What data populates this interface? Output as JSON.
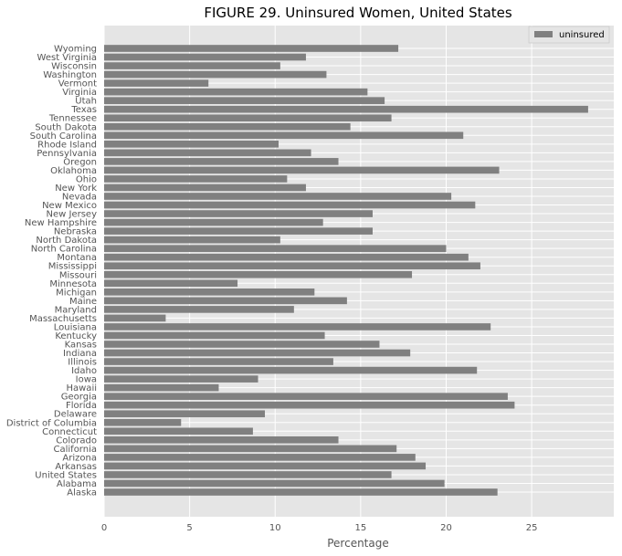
{
  "chart_data": {
    "type": "bar",
    "orientation": "horizontal",
    "title": "FIGURE 29. Uninsured Women, United States",
    "xlabel": "Percentage",
    "ylabel": "",
    "xlim": [
      0,
      29.8
    ],
    "xticks": [
      0,
      5,
      10,
      15,
      20,
      25
    ],
    "grid": true,
    "legend_position": "top-right",
    "bar_color": "#808080",
    "background_color": "#e5e5e5",
    "series": [
      {
        "name": "uninsured",
        "categories": [
          "Alaska",
          "Alabama",
          "United States",
          "Arkansas",
          "Arizona",
          "California",
          "Colorado",
          "Connecticut",
          "District of Columbia",
          "Delaware",
          "Florida",
          "Georgia",
          "Hawaii",
          "Iowa",
          "Idaho",
          "Illinois",
          "Indiana",
          "Kansas",
          "Kentucky",
          "Louisiana",
          "Massachusetts",
          "Maryland",
          "Maine",
          "Michigan",
          "Minnesota",
          "Missouri",
          "Mississippi",
          "Montana",
          "North Carolina",
          "North Dakota",
          "Nebraska",
          "New Hampshire",
          "New Jersey",
          "New Mexico",
          "Nevada",
          "New York",
          "Ohio",
          "Oklahoma",
          "Oregon",
          "Pennsylvania",
          "Rhode Island",
          "South Carolina",
          "South Dakota",
          "Tennessee",
          "Texas",
          "Utah",
          "Virginia",
          "Vermont",
          "Washington",
          "Wisconsin",
          "West Virginia",
          "Wyoming"
        ],
        "values": [
          23.0,
          19.9,
          16.8,
          18.8,
          18.2,
          17.1,
          13.7,
          8.7,
          4.5,
          9.4,
          24.0,
          23.6,
          6.7,
          9.0,
          21.8,
          13.4,
          17.9,
          16.1,
          12.9,
          22.6,
          3.6,
          11.1,
          14.2,
          12.3,
          7.8,
          18.0,
          22.0,
          21.3,
          20.0,
          10.3,
          15.7,
          12.8,
          15.7,
          21.7,
          20.3,
          11.8,
          10.7,
          23.1,
          13.7,
          12.1,
          10.2,
          21.0,
          14.4,
          16.8,
          28.3,
          16.4,
          15.4,
          6.1,
          13.0,
          10.3,
          11.8,
          17.2
        ]
      }
    ]
  }
}
